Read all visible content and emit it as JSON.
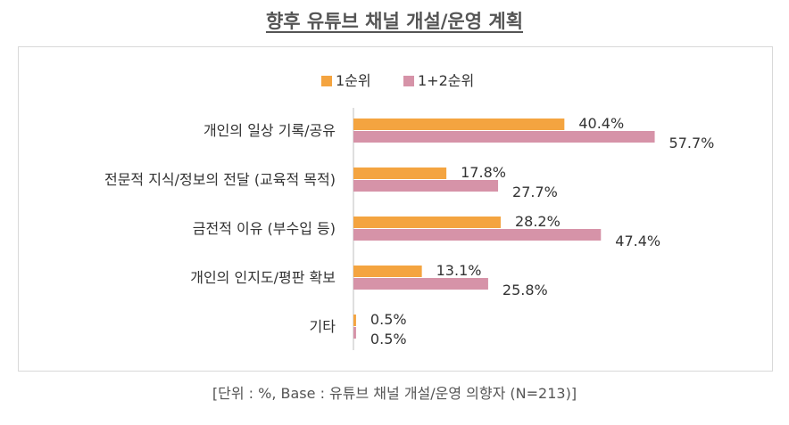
{
  "title": "향후 유튜브 채널 개설/운영 계획",
  "footnote": "[단위 : %, Base : 유튜브 채널 개설/운영 의향자 (N=213)]",
  "chart_data": {
    "type": "bar",
    "orientation": "horizontal",
    "categories": [
      "개인의 일상 기록/공유",
      "전문적 지식/정보의 전달 (교육적 목적)",
      "금전적 이유 (부수입 등)",
      "개인의 인지도/평판 확보",
      "기타"
    ],
    "series": [
      {
        "name": "1순위",
        "color": "#f4a440",
        "values": [
          40.4,
          17.8,
          28.2,
          13.1,
          0.5
        ]
      },
      {
        "name": "1+2순위",
        "color": "#d693a8",
        "values": [
          57.7,
          27.7,
          47.4,
          25.8,
          0.5
        ]
      }
    ],
    "data_label_suffix": "%",
    "xlim": [
      0,
      100
    ],
    "legend": "top-center",
    "grid": false
  }
}
